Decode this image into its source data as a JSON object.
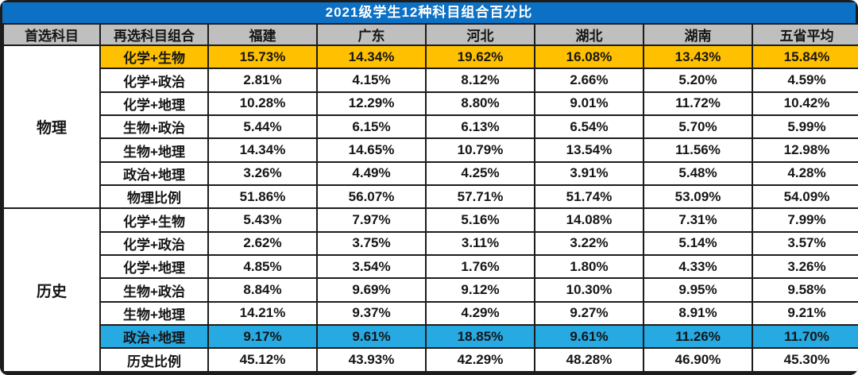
{
  "title": "2021级学生12种科目组合百分比",
  "colors": {
    "title_bg": "#0c70c4",
    "header_bg": "#bfbfbf",
    "highlight_yellow": "#ffc000",
    "highlight_blue": "#27a9e2",
    "border": "#1c1c1c"
  },
  "table": {
    "headers": [
      "首选科目",
      "再选科目组合",
      "福建",
      "广东",
      "河北",
      "湖北",
      "湖南",
      "五省平均"
    ],
    "groups": [
      {
        "subject": "物理",
        "rows": [
          {
            "combo": "化学+生物",
            "highlight": "yellow",
            "values": [
              "15.73%",
              "14.34%",
              "19.62%",
              "16.08%",
              "13.43%",
              "15.84%"
            ]
          },
          {
            "combo": "化学+政治",
            "highlight": "",
            "values": [
              "2.81%",
              "4.15%",
              "8.12%",
              "2.66%",
              "5.20%",
              "4.59%"
            ]
          },
          {
            "combo": "化学+地理",
            "highlight": "",
            "values": [
              "10.28%",
              "12.29%",
              "8.80%",
              "9.01%",
              "11.72%",
              "10.42%"
            ]
          },
          {
            "combo": "生物+政治",
            "highlight": "",
            "values": [
              "5.44%",
              "6.15%",
              "6.13%",
              "6.54%",
              "5.70%",
              "5.99%"
            ]
          },
          {
            "combo": "生物+地理",
            "highlight": "",
            "values": [
              "14.34%",
              "14.65%",
              "10.79%",
              "13.54%",
              "11.56%",
              "12.98%"
            ]
          },
          {
            "combo": "政治+地理",
            "highlight": "",
            "values": [
              "3.26%",
              "4.49%",
              "4.25%",
              "3.91%",
              "5.48%",
              "4.28%"
            ]
          },
          {
            "combo": "物理比例",
            "highlight": "",
            "values": [
              "51.86%",
              "56.07%",
              "57.71%",
              "51.74%",
              "53.09%",
              "54.09%"
            ]
          }
        ]
      },
      {
        "subject": "历史",
        "rows": [
          {
            "combo": "化学+生物",
            "highlight": "",
            "values": [
              "5.43%",
              "7.97%",
              "5.16%",
              "14.08%",
              "7.31%",
              "7.99%"
            ]
          },
          {
            "combo": "化学+政治",
            "highlight": "",
            "values": [
              "2.62%",
              "3.75%",
              "3.11%",
              "3.22%",
              "5.14%",
              "3.57%"
            ]
          },
          {
            "combo": "化学+地理",
            "highlight": "",
            "values": [
              "4.85%",
              "3.54%",
              "1.76%",
              "1.80%",
              "4.33%",
              "3.26%"
            ]
          },
          {
            "combo": "生物+政治",
            "highlight": "",
            "values": [
              "8.84%",
              "9.69%",
              "9.12%",
              "10.30%",
              "9.95%",
              "9.58%"
            ]
          },
          {
            "combo": "生物+地理",
            "highlight": "",
            "values": [
              "14.21%",
              "9.37%",
              "4.29%",
              "9.27%",
              "8.91%",
              "9.21%"
            ]
          },
          {
            "combo": "政治+地理",
            "highlight": "blue",
            "values": [
              "9.17%",
              "9.61%",
              "18.85%",
              "9.61%",
              "11.26%",
              "11.70%"
            ]
          },
          {
            "combo": "历史比例",
            "highlight": "",
            "values": [
              "45.12%",
              "43.93%",
              "42.29%",
              "48.28%",
              "46.90%",
              "45.30%"
            ]
          }
        ]
      }
    ]
  },
  "chart_data": {
    "type": "table",
    "title": "2021级学生12种科目组合百分比",
    "columns": [
      "首选科目",
      "再选科目组合",
      "福建",
      "广东",
      "河北",
      "湖北",
      "湖南",
      "五省平均"
    ],
    "rows": [
      [
        "物理",
        "化学+生物",
        15.73,
        14.34,
        19.62,
        16.08,
        13.43,
        15.84
      ],
      [
        "物理",
        "化学+政治",
        2.81,
        4.15,
        8.12,
        2.66,
        5.2,
        4.59
      ],
      [
        "物理",
        "化学+地理",
        10.28,
        12.29,
        8.8,
        9.01,
        11.72,
        10.42
      ],
      [
        "物理",
        "生物+政治",
        5.44,
        6.15,
        6.13,
        6.54,
        5.7,
        5.99
      ],
      [
        "物理",
        "生物+地理",
        14.34,
        14.65,
        10.79,
        13.54,
        11.56,
        12.98
      ],
      [
        "物理",
        "政治+地理",
        3.26,
        4.49,
        4.25,
        3.91,
        5.48,
        4.28
      ],
      [
        "物理",
        "物理比例",
        51.86,
        56.07,
        57.71,
        51.74,
        53.09,
        54.09
      ],
      [
        "历史",
        "化学+生物",
        5.43,
        7.97,
        5.16,
        14.08,
        7.31,
        7.99
      ],
      [
        "历史",
        "化学+政治",
        2.62,
        3.75,
        3.11,
        3.22,
        5.14,
        3.57
      ],
      [
        "历史",
        "化学+地理",
        4.85,
        3.54,
        1.76,
        1.8,
        4.33,
        3.26
      ],
      [
        "历史",
        "生物+政治",
        8.84,
        9.69,
        9.12,
        10.3,
        9.95,
        9.58
      ],
      [
        "历史",
        "生物+地理",
        14.21,
        9.37,
        4.29,
        9.27,
        8.91,
        9.21
      ],
      [
        "历史",
        "政治+地理",
        9.17,
        9.61,
        18.85,
        9.61,
        11.26,
        11.7
      ],
      [
        "历史",
        "历史比例",
        45.12,
        43.93,
        42.29,
        48.28,
        46.9,
        45.3
      ]
    ],
    "units": "percent",
    "highlighted_rows": [
      {
        "row": "物理 化学+生物",
        "color": "#ffc000"
      },
      {
        "row": "历史 政治+地理",
        "color": "#27a9e2"
      }
    ]
  }
}
